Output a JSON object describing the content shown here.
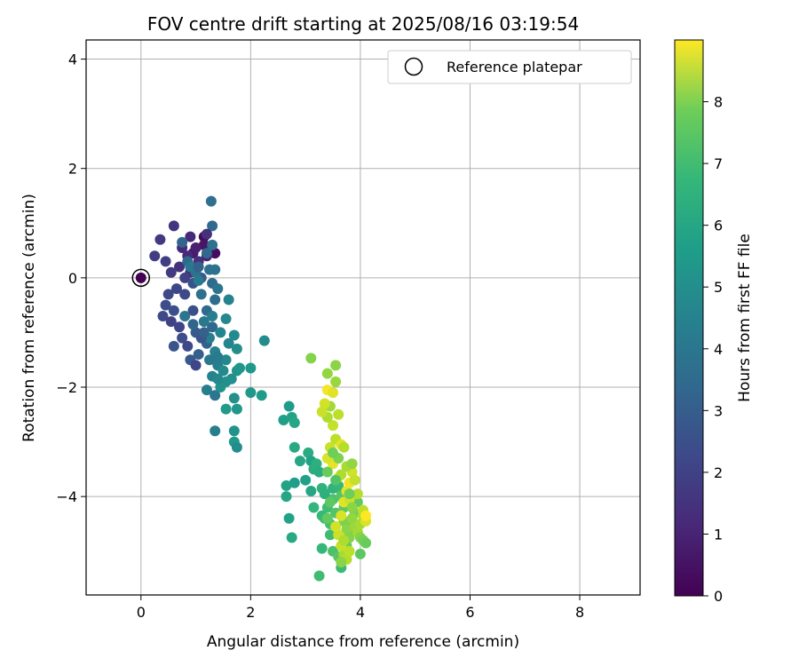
{
  "chart_data": {
    "type": "scatter",
    "title": "FOV centre drift starting at 2025/08/16 03:19:54",
    "xlabel": "Angular distance from reference (arcmin)",
    "ylabel": "Rotation from reference (arcmin)",
    "xlim": [
      -1.0,
      9.1
    ],
    "ylim": [
      -5.8,
      4.35
    ],
    "xticks": [
      "0",
      "2",
      "4",
      "6",
      "8"
    ],
    "yticks": [
      "−4",
      "−2",
      "0",
      "2",
      "4"
    ],
    "grid": true,
    "legend": {
      "label": "Reference platepar",
      "placement": "top-right"
    },
    "reference_point": {
      "x": 0.0,
      "y": 0.0
    },
    "colorbar": {
      "label": "Hours from first FF file",
      "range": [
        0,
        9.0
      ],
      "ticks": [
        "0",
        "1",
        "2",
        "3",
        "4",
        "5",
        "6",
        "7",
        "8"
      ],
      "colormap": "viridis"
    },
    "series": [
      {
        "points": [
          [
            0.0,
            0.0,
            0.0
          ],
          [
            1.15,
            0.75,
            0.2
          ],
          [
            1.35,
            0.45,
            0.3
          ],
          [
            1.15,
            0.6,
            0.5
          ],
          [
            0.95,
            0.45,
            0.7
          ],
          [
            0.9,
            0.75,
            1.0
          ],
          [
            0.6,
            0.95,
            1.4
          ],
          [
            0.35,
            0.7,
            1.5
          ],
          [
            0.25,
            0.4,
            1.6
          ],
          [
            0.45,
            0.3,
            1.7
          ],
          [
            0.75,
            0.55,
            1.0
          ],
          [
            0.85,
            0.4,
            1.1
          ],
          [
            1.05,
            0.3,
            1.2
          ],
          [
            0.7,
            0.2,
            1.3
          ],
          [
            0.55,
            0.1,
            1.5
          ],
          [
            0.9,
            0.1,
            1.2
          ],
          [
            1.0,
            0.55,
            0.8
          ],
          [
            1.2,
            0.4,
            0.9
          ],
          [
            0.8,
            0.0,
            1.8
          ],
          [
            0.65,
            -0.2,
            1.9
          ],
          [
            0.5,
            -0.3,
            2.0
          ],
          [
            0.45,
            -0.5,
            2.1
          ],
          [
            0.6,
            -0.6,
            2.2
          ],
          [
            0.4,
            -0.7,
            2.0
          ],
          [
            0.55,
            -0.8,
            1.8
          ],
          [
            0.8,
            -0.3,
            2.0
          ],
          [
            0.95,
            -0.1,
            2.3
          ],
          [
            1.1,
            0.0,
            2.5
          ],
          [
            0.7,
            -0.9,
            1.9
          ],
          [
            0.95,
            -0.6,
            2.2
          ],
          [
            0.75,
            -1.1,
            2.1
          ],
          [
            0.6,
            -1.25,
            2.4
          ],
          [
            0.85,
            -1.25,
            2.0
          ],
          [
            1.0,
            -1.0,
            2.6
          ],
          [
            0.9,
            -1.5,
            2.5
          ],
          [
            1.05,
            -1.4,
            2.7
          ],
          [
            1.2,
            -1.2,
            2.8
          ],
          [
            1.0,
            -1.6,
            1.9
          ],
          [
            1.3,
            -0.9,
            3.0
          ],
          [
            1.2,
            -0.6,
            3.1
          ],
          [
            1.35,
            -0.4,
            3.2
          ],
          [
            1.3,
            -0.1,
            3.1
          ],
          [
            1.25,
            0.15,
            3.3
          ],
          [
            1.3,
            0.6,
            3.3
          ],
          [
            1.3,
            0.95,
            3.1
          ],
          [
            1.28,
            1.4,
            3.3
          ],
          [
            1.35,
            0.15,
            3.4
          ],
          [
            1.4,
            -0.2,
            3.5
          ],
          [
            1.1,
            -0.3,
            3.3
          ],
          [
            1.0,
            0.1,
            3.4
          ],
          [
            0.85,
            0.3,
            3.0
          ],
          [
            0.75,
            0.65,
            2.9
          ],
          [
            1.2,
            0.45,
            3.0
          ],
          [
            0.9,
            0.2,
            3.6
          ],
          [
            1.05,
            -0.05,
            3.7
          ],
          [
            0.8,
            -0.7,
            3.5
          ],
          [
            1.15,
            -0.8,
            3.6
          ],
          [
            1.3,
            -0.7,
            3.8
          ],
          [
            1.25,
            -1.1,
            3.9
          ],
          [
            1.35,
            -1.35,
            4.0
          ],
          [
            1.45,
            -1.0,
            4.1
          ],
          [
            1.55,
            -0.75,
            4.2
          ],
          [
            1.6,
            -0.4,
            4.0
          ],
          [
            1.4,
            -1.6,
            3.8
          ],
          [
            1.3,
            -1.8,
            4.0
          ],
          [
            1.2,
            -2.05,
            3.9
          ],
          [
            1.35,
            -2.15,
            3.5
          ],
          [
            1.5,
            -1.7,
            4.3
          ],
          [
            1.55,
            -1.5,
            4.2
          ],
          [
            1.6,
            -1.2,
            4.1
          ],
          [
            1.7,
            -1.05,
            4.3
          ],
          [
            1.75,
            -1.3,
            4.4
          ],
          [
            1.65,
            -1.85,
            4.5
          ],
          [
            1.55,
            -1.9,
            4.5
          ],
          [
            1.45,
            -2.0,
            4.6
          ],
          [
            1.4,
            -1.85,
            4.2
          ],
          [
            1.75,
            -1.7,
            4.6
          ],
          [
            1.8,
            -1.65,
            4.7
          ],
          [
            2.0,
            -1.65,
            4.8
          ],
          [
            2.0,
            -2.1,
            4.8
          ],
          [
            2.2,
            -2.15,
            4.9
          ],
          [
            2.25,
            -1.15,
            4.4
          ],
          [
            1.7,
            -2.2,
            4.5
          ],
          [
            1.75,
            -2.4,
            4.7
          ],
          [
            1.55,
            -2.4,
            4.9
          ],
          [
            1.7,
            -2.8,
            4.6
          ],
          [
            1.7,
            -3.0,
            4.8
          ],
          [
            1.75,
            -3.1,
            4.4
          ],
          [
            1.35,
            -2.8,
            3.9
          ],
          [
            1.1,
            -1.1,
            2.4
          ],
          [
            1.25,
            -1.5,
            3.6
          ],
          [
            1.4,
            -1.45,
            3.7
          ],
          [
            0.95,
            -0.85,
            2.9
          ],
          [
            1.15,
            -1.0,
            2.8
          ],
          [
            1.2,
            0.8,
            1.2
          ],
          [
            1.05,
            0.2,
            2.8
          ],
          [
            2.6,
            -2.6,
            5.0
          ],
          [
            2.7,
            -2.35,
            4.9
          ],
          [
            2.75,
            -2.55,
            5.2
          ],
          [
            2.8,
            -2.65,
            5.3
          ],
          [
            2.8,
            -3.1,
            5.4
          ],
          [
            2.9,
            -3.35,
            5.3
          ],
          [
            3.05,
            -3.2,
            5.5
          ],
          [
            3.1,
            -3.35,
            5.1
          ],
          [
            2.65,
            -3.8,
            5.2
          ],
          [
            2.65,
            -4.0,
            5.3
          ],
          [
            2.7,
            -4.4,
            5.2
          ],
          [
            2.75,
            -4.75,
            5.4
          ],
          [
            2.8,
            -3.75,
            5.0
          ],
          [
            3.0,
            -3.7,
            5.1
          ],
          [
            3.1,
            -3.9,
            5.3
          ],
          [
            3.15,
            -3.5,
            5.6
          ],
          [
            3.2,
            -3.4,
            5.7
          ],
          [
            3.25,
            -3.55,
            5.5
          ],
          [
            3.3,
            -3.85,
            5.8
          ],
          [
            3.15,
            -4.2,
            5.9
          ],
          [
            3.3,
            -4.35,
            6.0
          ],
          [
            3.35,
            -4.4,
            6.1
          ],
          [
            3.4,
            -4.2,
            6.2
          ],
          [
            3.45,
            -4.5,
            6.3
          ],
          [
            3.5,
            -4.05,
            6.4
          ],
          [
            3.55,
            -4.3,
            6.5
          ],
          [
            3.6,
            -3.85,
            6.3
          ],
          [
            3.65,
            -4.0,
            6.6
          ],
          [
            3.7,
            -4.2,
            6.7
          ],
          [
            3.55,
            -4.55,
            6.5
          ],
          [
            3.45,
            -4.7,
            6.2
          ],
          [
            3.5,
            -5.0,
            6.4
          ],
          [
            3.6,
            -5.1,
            6.6
          ],
          [
            3.65,
            -5.3,
            6.1
          ],
          [
            3.75,
            -4.9,
            6.8
          ],
          [
            3.8,
            -4.7,
            6.9
          ],
          [
            3.85,
            -4.5,
            7.0
          ],
          [
            3.9,
            -4.3,
            7.1
          ],
          [
            3.95,
            -4.1,
            6.8
          ],
          [
            3.3,
            -4.95,
            6.0
          ],
          [
            3.25,
            -5.45,
            6.2
          ],
          [
            3.35,
            -3.95,
            5.7
          ],
          [
            3.5,
            -3.85,
            5.8
          ],
          [
            3.6,
            -3.8,
            6.0
          ],
          [
            3.7,
            -4.45,
            7.2
          ],
          [
            3.75,
            -4.6,
            7.4
          ],
          [
            3.8,
            -4.75,
            7.3
          ],
          [
            3.85,
            -4.4,
            7.5
          ],
          [
            3.9,
            -4.55,
            7.6
          ],
          [
            3.95,
            -4.65,
            7.7
          ],
          [
            4.0,
            -4.5,
            7.8
          ],
          [
            4.05,
            -4.35,
            7.9
          ],
          [
            4.0,
            -4.75,
            7.3
          ],
          [
            4.05,
            -4.8,
            7.1
          ],
          [
            4.1,
            -4.85,
            6.9
          ],
          [
            4.0,
            -5.05,
            6.7
          ],
          [
            3.7,
            -5.05,
            7.8
          ],
          [
            3.75,
            -5.15,
            8.0
          ],
          [
            3.8,
            -5.0,
            8.1
          ],
          [
            3.65,
            -4.9,
            8.2
          ],
          [
            3.6,
            -4.7,
            8.3
          ],
          [
            3.55,
            -4.55,
            8.4
          ],
          [
            3.65,
            -4.35,
            8.5
          ],
          [
            3.7,
            -4.1,
            8.6
          ],
          [
            3.75,
            -3.9,
            8.7
          ],
          [
            3.8,
            -3.75,
            8.8
          ],
          [
            3.6,
            -3.65,
            8.9
          ],
          [
            3.5,
            -3.4,
            8.7
          ],
          [
            3.4,
            -3.3,
            8.5
          ],
          [
            3.45,
            -3.1,
            8.3
          ],
          [
            3.55,
            -2.95,
            8.1
          ],
          [
            3.65,
            -3.05,
            8.6
          ],
          [
            3.7,
            -3.1,
            8.0
          ],
          [
            3.5,
            -2.7,
            8.2
          ],
          [
            3.4,
            -2.55,
            7.9
          ],
          [
            3.45,
            -2.35,
            7.7
          ],
          [
            3.4,
            -2.05,
            8.9
          ],
          [
            3.5,
            -2.1,
            8.6
          ],
          [
            3.6,
            -2.5,
            8.1
          ],
          [
            3.35,
            -2.3,
            8.4
          ],
          [
            3.3,
            -2.45,
            8.3
          ],
          [
            3.55,
            -1.9,
            7.6
          ],
          [
            3.4,
            -1.75,
            7.5
          ],
          [
            3.55,
            -1.6,
            7.4
          ],
          [
            3.1,
            -1.47,
            7.3
          ],
          [
            3.85,
            -3.55,
            8.4
          ],
          [
            3.9,
            -3.7,
            8.2
          ],
          [
            3.8,
            -4.05,
            8.3
          ],
          [
            3.95,
            -3.95,
            8.0
          ],
          [
            4.05,
            -4.25,
            8.1
          ],
          [
            4.1,
            -4.45,
            8.5
          ],
          [
            4.1,
            -4.35,
            9.0
          ],
          [
            3.65,
            -3.6,
            7.9
          ],
          [
            3.75,
            -3.45,
            7.8
          ],
          [
            3.85,
            -3.4,
            7.5
          ],
          [
            3.6,
            -3.3,
            7.2
          ],
          [
            3.5,
            -3.2,
            7.0
          ],
          [
            3.4,
            -3.55,
            6.9
          ],
          [
            3.55,
            -3.7,
            6.5
          ],
          [
            3.8,
            -3.95,
            7.0
          ],
          [
            3.45,
            -4.1,
            6.7
          ],
          [
            3.4,
            -4.4,
            6.8
          ],
          [
            3.85,
            -4.2,
            7.4
          ],
          [
            3.7,
            -4.8,
            7.9
          ],
          [
            3.65,
            -5.2,
            7.4
          ]
        ]
      }
    ]
  }
}
